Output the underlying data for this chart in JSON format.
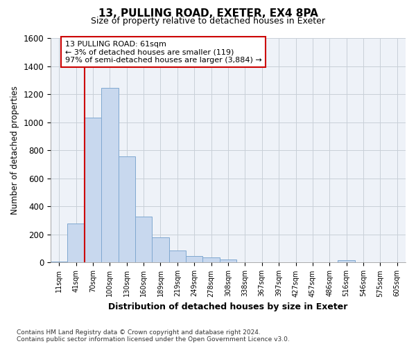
{
  "title_line1": "13, PULLING ROAD, EXETER, EX4 8PA",
  "title_line2": "Size of property relative to detached houses in Exeter",
  "xlabel": "Distribution of detached houses by size in Exeter",
  "ylabel": "Number of detached properties",
  "annotation_text": "13 PULLING ROAD: 61sqm\n← 3% of detached houses are smaller (119)\n97% of semi-detached houses are larger (3,884) →",
  "footnote": "Contains HM Land Registry data © Crown copyright and database right 2024.\nContains public sector information licensed under the Open Government Licence v3.0.",
  "bin_labels": [
    "11sqm",
    "41sqm",
    "70sqm",
    "100sqm",
    "130sqm",
    "160sqm",
    "189sqm",
    "219sqm",
    "249sqm",
    "278sqm",
    "308sqm",
    "338sqm",
    "367sqm",
    "397sqm",
    "427sqm",
    "457sqm",
    "486sqm",
    "516sqm",
    "546sqm",
    "575sqm",
    "605sqm"
  ],
  "bar_values": [
    5,
    280,
    1035,
    1245,
    755,
    330,
    180,
    85,
    48,
    35,
    20,
    0,
    0,
    0,
    0,
    0,
    0,
    15,
    0,
    0,
    0
  ],
  "bar_color": "#c8d8ee",
  "bar_edge_color": "#7fa8d0",
  "red_line_color": "#cc0000",
  "annotation_box_color": "white",
  "annotation_box_edge": "#cc0000",
  "background_color": "white",
  "plot_bg_color": "#eef2f8",
  "grid_color": "#c8cfd8",
  "ylim": [
    0,
    1600
  ],
  "yticks": [
    0,
    200,
    400,
    600,
    800,
    1000,
    1200,
    1400,
    1600
  ]
}
